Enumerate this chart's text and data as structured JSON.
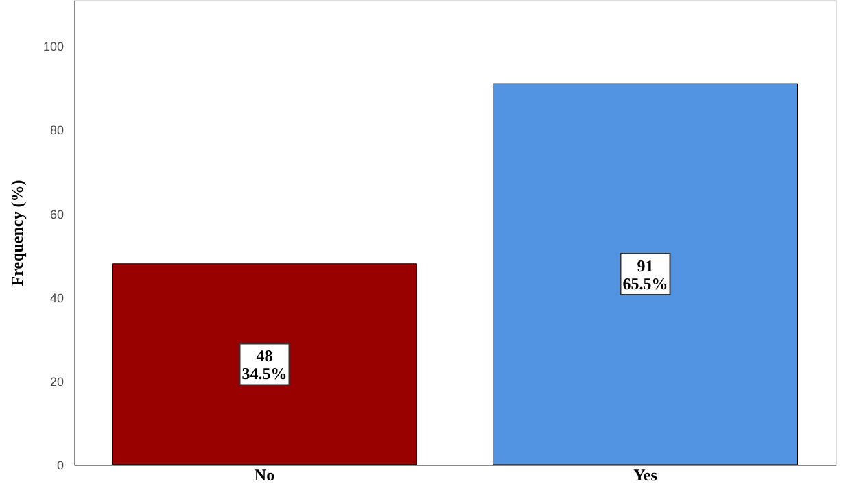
{
  "chart_data": {
    "type": "bar",
    "ylabel": "Frequency (%)",
    "categories": [
      "No",
      "Yes"
    ],
    "values": [
      48,
      91
    ],
    "colors": [
      "#990000",
      "#5294e2"
    ],
    "value_labels": [
      "48\n34.5%",
      "91\n65.5%"
    ],
    "ylim": [
      0,
      111
    ],
    "yticks": [
      0,
      20,
      40,
      60,
      80,
      100
    ],
    "grid": false
  }
}
